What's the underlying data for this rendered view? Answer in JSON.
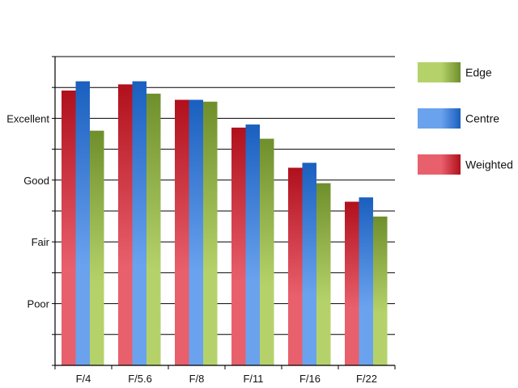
{
  "chart_data": {
    "type": "bar",
    "categories": [
      "F/4",
      "F/5.6",
      "F/8",
      "F/11",
      "F/16",
      "F/22"
    ],
    "y_tick_labels": [
      {
        "value": 1,
        "label": "Poor"
      },
      {
        "value": 2,
        "label": "Fair"
      },
      {
        "value": 3,
        "label": "Good"
      },
      {
        "value": 4,
        "label": "Excellent"
      }
    ],
    "ylim": [
      0,
      5
    ],
    "grid": true,
    "legend_position": "right",
    "series": [
      {
        "name": "Weighted",
        "color_light": "#e8606c",
        "color_dark": "#b0101c",
        "values": [
          4.45,
          4.55,
          4.3,
          3.85,
          3.2,
          2.65
        ]
      },
      {
        "name": "Centre",
        "color_light": "#6aa2ee",
        "color_dark": "#1a5fbf",
        "values": [
          4.6,
          4.6,
          4.3,
          3.9,
          3.28,
          2.72
        ]
      },
      {
        "name": "Edge",
        "color_light": "#b5d26a",
        "color_dark": "#6f8f2c",
        "values": [
          3.8,
          4.4,
          4.27,
          3.67,
          2.95,
          2.41
        ]
      }
    ],
    "legend_order": [
      "Edge",
      "Centre",
      "Weighted"
    ]
  }
}
